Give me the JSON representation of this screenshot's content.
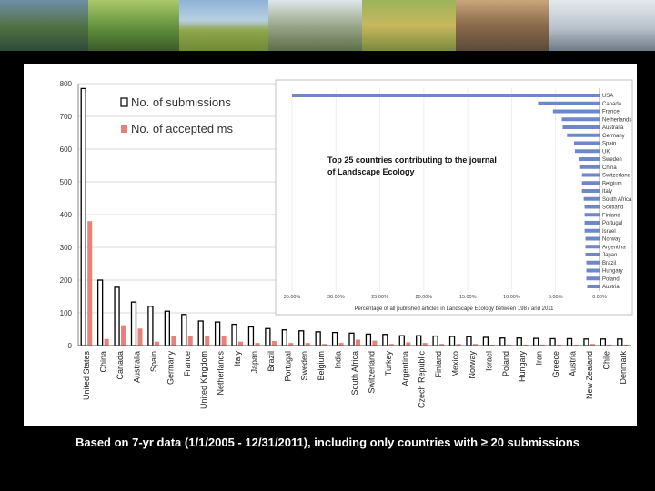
{
  "caption": "Based on 7-yr data (1/1/2005 - 12/31/2011), including only countries with ≥ 20 submissions",
  "colors": {
    "submissions": "#000000",
    "accepted": "#e8817a",
    "inset_bar": "#6d87c8"
  },
  "chart_data": [
    {
      "type": "bar",
      "title": "",
      "xlabel": "",
      "ylabel": "",
      "ylim": [
        0,
        800
      ],
      "yticks": [
        0,
        100,
        200,
        300,
        400,
        500,
        600,
        700,
        800
      ],
      "legend": {
        "placement": "top-left",
        "entries": [
          "No. of submissions",
          "No. of accepted ms"
        ]
      },
      "categories": [
        "United States",
        "China",
        "Canada",
        "Australia",
        "Spain",
        "Germany",
        "France",
        "United Kingdom",
        "Netherlands",
        "Italy",
        "Japan",
        "Brazil",
        "Portugal",
        "Sweden",
        "Belgium",
        "India",
        "South Africa",
        "Switzerland",
        "Turkey",
        "Argentina",
        "Czech Republic",
        "Finland",
        "Mexico",
        "Norway",
        "Israel",
        "Poland",
        "Hungary",
        "Iran",
        "Greece",
        "Austria",
        "New Zealand",
        "Chile",
        "Denmark"
      ],
      "series": [
        {
          "name": "No. of submissions",
          "values": [
            785,
            200,
            178,
            133,
            120,
            105,
            95,
            75,
            72,
            65,
            57,
            52,
            48,
            45,
            42,
            40,
            38,
            35,
            34,
            30,
            30,
            29,
            28,
            27,
            25,
            23,
            23,
            22,
            21,
            21,
            20,
            20,
            20
          ]
        },
        {
          "name": "No. of accepted ms",
          "values": [
            380,
            20,
            62,
            52,
            12,
            28,
            28,
            28,
            28,
            12,
            8,
            14,
            8,
            8,
            5,
            8,
            18,
            15,
            5,
            10,
            8,
            5,
            5,
            5,
            3,
            3,
            3,
            3,
            3,
            3,
            5,
            3,
            3
          ]
        }
      ]
    },
    {
      "type": "bar",
      "orientation": "horizontal",
      "title": "Top 25 countries contributing to the journal of Landscape Ecology",
      "xlabel": "Percentage of all published articles in Landscape Ecology between 1987 and 2011",
      "xlim": [
        35,
        0
      ],
      "xticks": [
        "35.00%",
        "30.00%",
        "25.00%",
        "20.00%",
        "15.00%",
        "10.00%",
        "5.00%",
        "0.00%"
      ],
      "categories": [
        "USA",
        "Canada",
        "France",
        "Netherlands",
        "Australia",
        "Germany",
        "Spain",
        "UK",
        "Sweden",
        "China",
        "Switzerland",
        "Belgium",
        "Italy",
        "South Africa",
        "Scotland",
        "Finland",
        "Portugal",
        "Israel",
        "Norway",
        "Argentina",
        "Japan",
        "Brazil",
        "Hungary",
        "Poland",
        "Austria"
      ],
      "values": [
        35,
        7.0,
        5.3,
        4.3,
        4.2,
        3.7,
        2.9,
        2.8,
        2.3,
        2.2,
        2.0,
        2.0,
        2.0,
        1.8,
        1.7,
        1.7,
        1.7,
        1.7,
        1.6,
        1.6,
        1.6,
        1.5,
        1.5,
        1.5,
        1.4
      ]
    }
  ]
}
